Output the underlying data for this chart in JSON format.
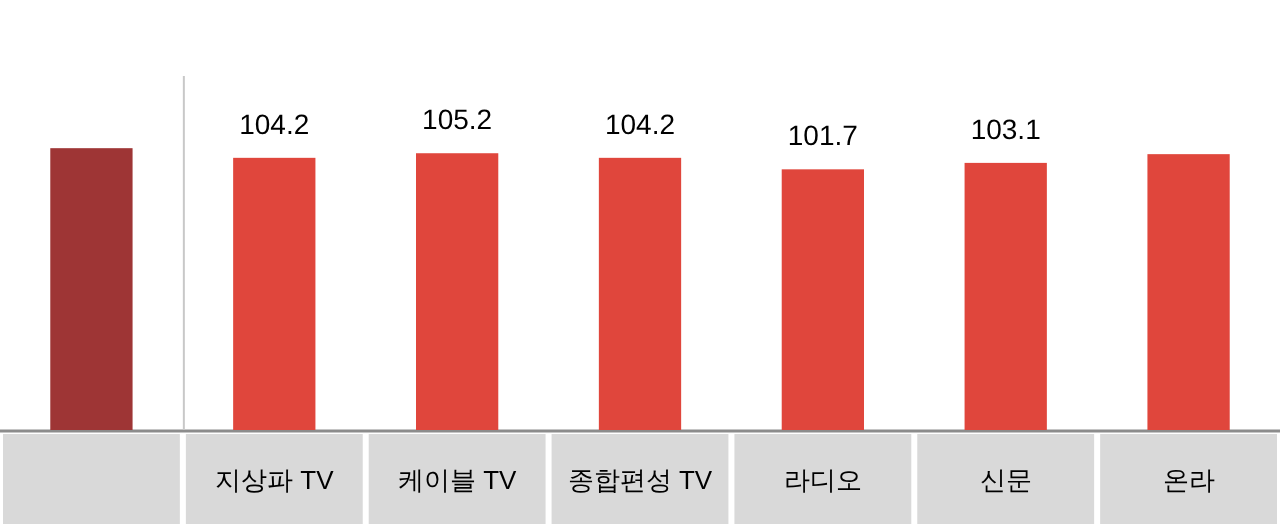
{
  "chart_data": {
    "type": "bar",
    "categories": [
      null,
      "지상파 TV",
      "케이블 TV",
      "종합편성 TV",
      "라디오",
      "신문",
      "온라"
    ],
    "values": [
      106.3,
      104.2,
      105.2,
      104.2,
      101.7,
      103.1,
      105.0
    ],
    "colors": [
      "#9e3535",
      "#e0463c",
      "#e0463c",
      "#e0463c",
      "#e0463c",
      "#e0463c",
      "#e0463c"
    ],
    "value_labels": [
      null,
      "104.2",
      "105.2",
      "104.2",
      "101.7",
      "103.1",
      null
    ],
    "ylim": [
      45,
      122
    ],
    "tick_labels": "x"
  }
}
